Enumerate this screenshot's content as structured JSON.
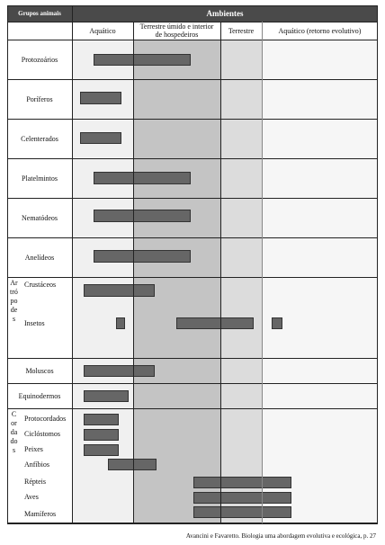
{
  "header": {
    "group_column": "Grupos animais",
    "environments_title": "Ambientes",
    "environments": [
      "Aquático",
      "Terrestre úmido e interior de hospedeiros",
      "Terrestre",
      "Aquático (retorno evolutivo)"
    ]
  },
  "groups": [
    {
      "label": "Protozoários"
    },
    {
      "label": "Poríferos"
    },
    {
      "label": "Celenterados"
    },
    {
      "label": "Platelmintos"
    },
    {
      "label": "Nematódeos"
    },
    {
      "label": "Anelídeos"
    },
    {
      "label": "Artrópodes",
      "subgroups": [
        "Crustáceos",
        "Insetos"
      ]
    },
    {
      "label": "Moluscos"
    },
    {
      "label": "Equinodermos"
    },
    {
      "label": "Cordados",
      "subgroups": [
        "Protocordados",
        "Ciclóstomos",
        "Peixes",
        "Anfíbios",
        "Répteis",
        "Aves",
        "Mamíferos"
      ]
    }
  ],
  "caption": "Avancini e Favaretto. Biologia uma abordagem evolutiva e ecológica, p. 27"
}
